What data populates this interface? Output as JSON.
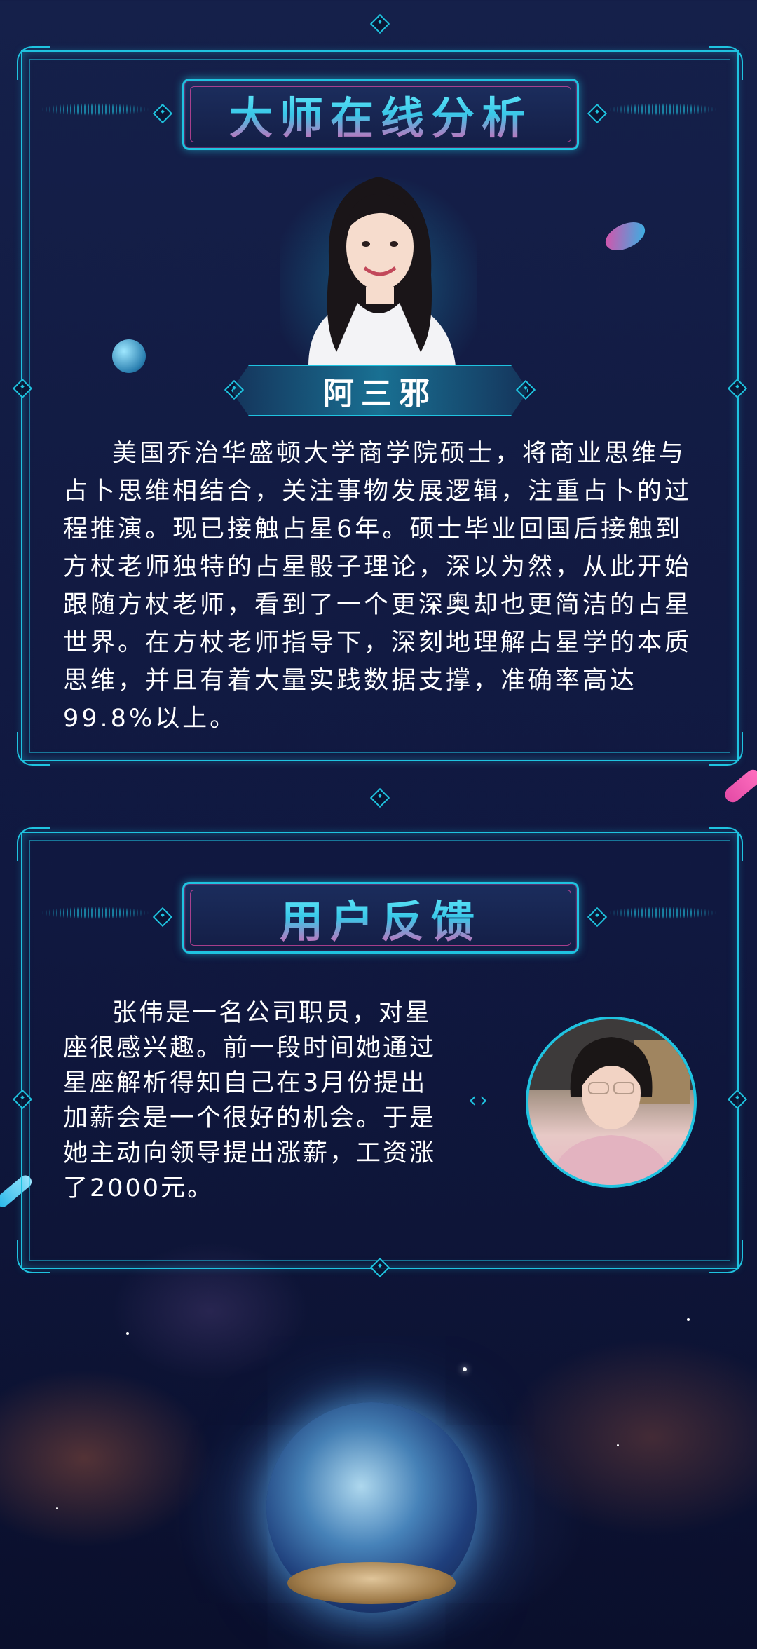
{
  "master_section": {
    "title": "大师在线分析",
    "name": "阿三邪",
    "bio": "美国乔治华盛顿大学商学院硕士，将商业思维与占卜思维相结合，关注事物发展逻辑，注重占卜的过程推演。现已接触占星6年。硕士毕业回国后接触到方杖老师独特的占星骰子理论，深以为然，从此开始跟随方杖老师，看到了一个更深奥却也更简洁的占星世界。在方杖老师指导下，深刻地理解占星学的本质思维，并且有着大量实践数据支撑，准确率高达99.8%以上。"
  },
  "feedback_section": {
    "title": "用户反馈",
    "text": "张伟是一名公司职员，对星座很感兴趣。前一段时间她通过星座解析得知自己在3月份提出加薪会是一个很好的机会。于是她主动向领导提出涨薪，工资涨了2000元。"
  },
  "colors": {
    "accent": "#1fc3e0",
    "pink": "#e44ba6",
    "background": "#121b43"
  }
}
